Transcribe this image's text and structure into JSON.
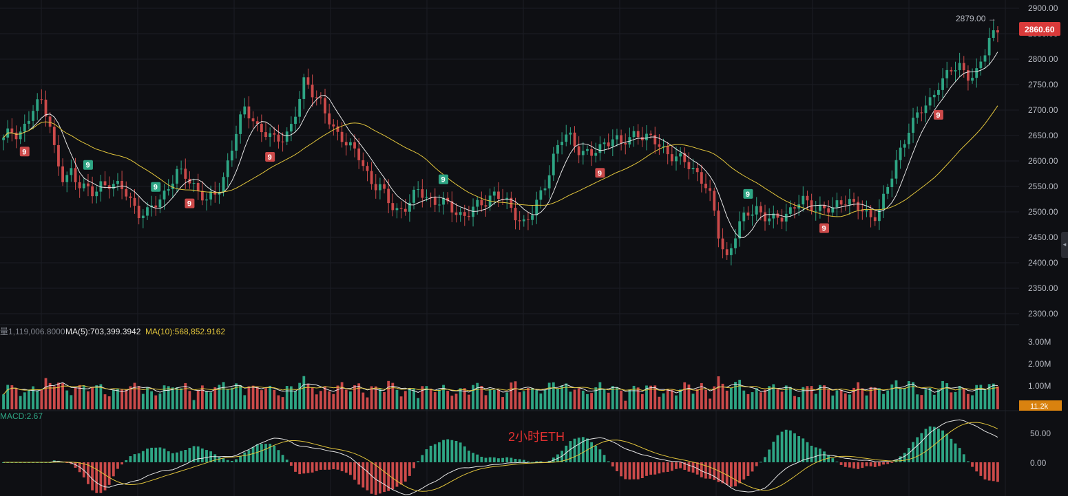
{
  "colors": {
    "background": "#0e0f13",
    "grid": "#1c1e24",
    "up": "#2ea584",
    "down": "#cc4a4a",
    "ma_fast": "#e6e6e6",
    "ma_slow": "#e2c53c",
    "last_price_badge": "#d93a3a",
    "volume_badge": "#d9820f",
    "annotation": "#e03030",
    "axis_text": "#b9bcc4"
  },
  "price_axis": {
    "ticks": [
      "2900.00",
      "2850.00",
      "2800.00",
      "2750.00",
      "2700.00",
      "2650.00",
      "2600.00",
      "2550.00",
      "2500.00",
      "2450.00",
      "2400.00",
      "2350.00",
      "2300.00"
    ],
    "last_price": "2860.60",
    "high_label": "2879.00 →"
  },
  "volume_legend": {
    "prefix": "量1,119,006.8000",
    "ma5": "MA(5):703,399.3942",
    "ma10": "MA(10):568,852.9162"
  },
  "volume_axis": {
    "ticks": [
      "3.00M",
      "2.00M",
      "1.00M"
    ],
    "current": "11.2k"
  },
  "macd": {
    "label": "MACD:2.67",
    "ticks": [
      "50.00",
      "0.00"
    ]
  },
  "annotation": "2小时ETH",
  "td_markers": [
    {
      "text": "9",
      "type": "sell",
      "index": 5
    },
    {
      "text": "9",
      "type": "buy",
      "index": 20
    },
    {
      "text": "9",
      "type": "buy",
      "index": 36
    },
    {
      "text": "9",
      "type": "sell",
      "index": 44
    },
    {
      "text": "9",
      "type": "sell",
      "index": 63
    },
    {
      "text": "9",
      "type": "buy",
      "index": 104
    },
    {
      "text": "9",
      "type": "sell",
      "index": 141
    },
    {
      "text": "9",
      "type": "buy",
      "index": 176
    },
    {
      "text": "9",
      "type": "sell",
      "index": 194
    },
    {
      "text": "9",
      "type": "sell",
      "index": 221
    }
  ],
  "chart_data": {
    "type": "candlestick",
    "series": [
      {
        "name": "ETH 2h close",
        "values": [
          2640,
          2660,
          2655,
          2670,
          2700,
          2720,
          2690,
          2600,
          2555,
          2580,
          2560,
          2545,
          2530,
          2555,
          2560,
          2550,
          2540,
          2520,
          2500,
          2495,
          2510,
          2530,
          2555,
          2575,
          2570,
          2560,
          2540,
          2520,
          2530,
          2560,
          2610,
          2660,
          2700,
          2690,
          2660,
          2650,
          2640,
          2650,
          2660,
          2700,
          2760,
          2740,
          2720,
          2680,
          2655,
          2650,
          2630,
          2610,
          2580,
          2560,
          2550,
          2520,
          2500,
          2510,
          2520,
          2540,
          2530,
          2525,
          2520,
          2510,
          2500,
          2495,
          2500,
          2510,
          2520,
          2540,
          2530,
          2510,
          2495,
          2480,
          2490,
          2520,
          2560,
          2610,
          2640,
          2650,
          2630,
          2620,
          2610,
          2620,
          2640,
          2650,
          2630,
          2640,
          2660,
          2650,
          2640,
          2630,
          2620,
          2610,
          2600,
          2590,
          2580,
          2560,
          2520,
          2450,
          2410,
          2450,
          2480,
          2500,
          2510,
          2490,
          2480,
          2490,
          2500,
          2510,
          2520,
          2515,
          2510,
          2505,
          2500,
          2520,
          2530,
          2510,
          2500,
          2490,
          2500,
          2530,
          2570,
          2620,
          2660,
          2680,
          2700,
          2720,
          2750,
          2760,
          2780,
          2790,
          2770,
          2760,
          2800,
          2850,
          2860
        ]
      }
    ],
    "ylim": [
      2285,
      2910
    ]
  }
}
